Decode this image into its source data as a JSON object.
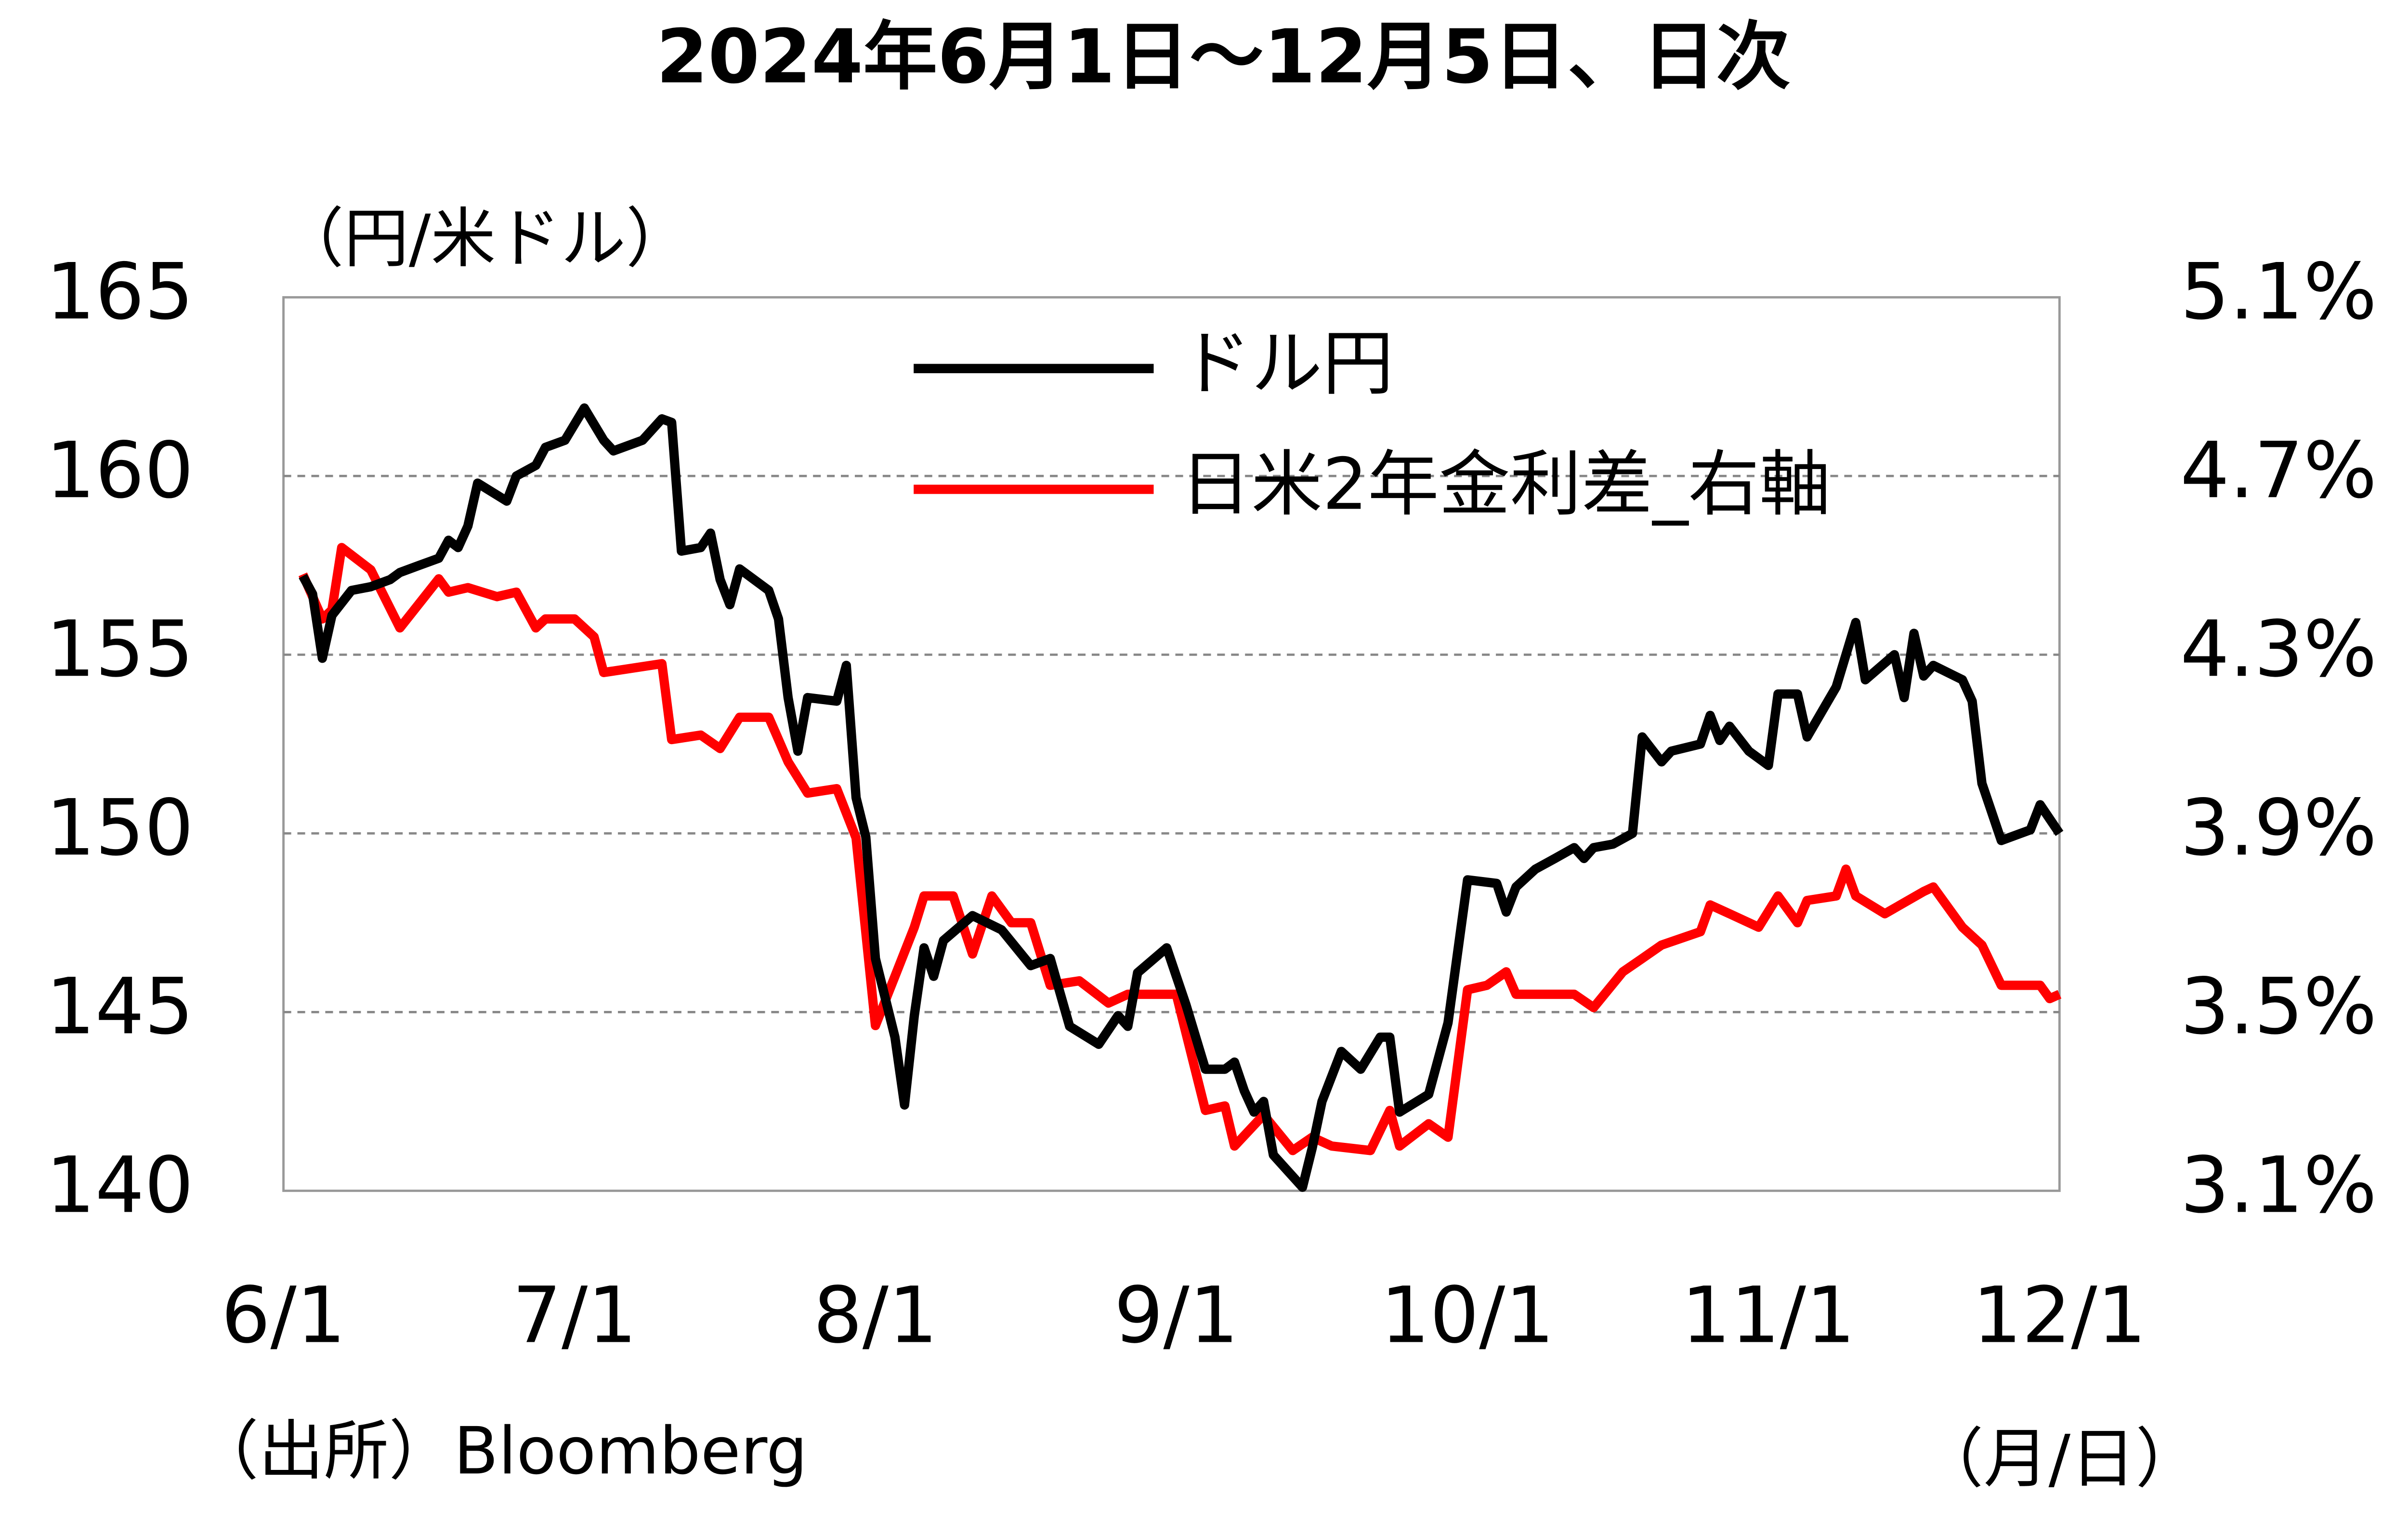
{
  "chart_data": {
    "type": "line",
    "title": "2024年6月1日～12月5日、日次",
    "y_label": "（円/米ドル）",
    "x_unit": "（月/日）",
    "source": "（出所）Bloomberg",
    "xlim": [
      "6/1",
      "12/1"
    ],
    "xticks": [
      "6/1",
      "7/1",
      "8/1",
      "9/1",
      "10/1",
      "11/1",
      "12/1"
    ],
    "ylim": [
      140,
      165
    ],
    "yticks": [
      140,
      145,
      150,
      155,
      160,
      165
    ],
    "y2lim": [
      3.1,
      5.1
    ],
    "y2ticks": [
      {
        "value": 3.1,
        "label": "3.1%"
      },
      {
        "value": 3.5,
        "label": "3.5%"
      },
      {
        "value": 3.9,
        "label": "3.9%"
      },
      {
        "value": 4.3,
        "label": "4.3%"
      },
      {
        "value": 4.7,
        "label": "4.7%"
      },
      {
        "value": 5.1,
        "label": "5.1%"
      }
    ],
    "grid": true,
    "series": [
      {
        "name": "ドル円",
        "color": "#000000",
        "x": [
          "6/3",
          "6/4",
          "6/5",
          "6/6",
          "6/8",
          "6/10",
          "6/12",
          "6/13",
          "6/15",
          "6/17",
          "6/18",
          "6/19",
          "6/20",
          "6/21",
          "6/24",
          "6/25",
          "6/27",
          "6/28",
          "6/30",
          "7/2",
          "7/4",
          "7/5",
          "7/8",
          "7/10",
          "7/11",
          "7/12",
          "7/14",
          "7/15",
          "7/16",
          "7/17",
          "7/18",
          "7/21",
          "7/22",
          "7/23",
          "7/24",
          "7/25",
          "7/28",
          "7/29",
          "7/30",
          "7/31",
          "8/1",
          "8/3",
          "8/4",
          "8/5",
          "8/6",
          "8/7",
          "8/8",
          "8/11",
          "8/14",
          "8/17",
          "8/19",
          "8/21",
          "8/24",
          "8/26",
          "8/27",
          "8/28",
          "8/31",
          "9/2",
          "9/4",
          "9/6",
          "9/7",
          "9/8",
          "9/9",
          "9/10",
          "9/11",
          "9/14",
          "9/15",
          "9/16",
          "9/18",
          "9/20",
          "9/22",
          "9/23",
          "9/24",
          "9/27",
          "9/29",
          "10/1",
          "10/4",
          "10/5",
          "10/6",
          "10/8",
          "10/10",
          "10/12",
          "10/13",
          "10/14",
          "10/16",
          "10/18",
          "10/19",
          "10/21",
          "10/22",
          "10/25",
          "10/26",
          "10/27",
          "10/28",
          "10/30",
          "11/1",
          "11/2",
          "11/4",
          "11/5",
          "11/8",
          "11/10",
          "11/11",
          "11/14",
          "11/15",
          "11/16",
          "11/17",
          "11/18",
          "11/21",
          "11/22",
          "11/23",
          "11/25",
          "11/28",
          "11/29",
          "12/1"
        ],
        "values": [
          157.2,
          156.7,
          154.9,
          156.1,
          156.8,
          156.9,
          157.1,
          157.3,
          157.5,
          157.7,
          158.2,
          158.0,
          158.6,
          159.8,
          159.3,
          160.0,
          160.3,
          160.8,
          161.0,
          161.9,
          161.0,
          160.7,
          161.0,
          161.6,
          161.5,
          157.9,
          158.0,
          158.4,
          157.1,
          156.4,
          157.4,
          156.8,
          156.0,
          153.8,
          152.3,
          153.8,
          153.7,
          154.7,
          151.0,
          149.9,
          146.5,
          144.3,
          142.4,
          144.9,
          146.8,
          146.0,
          147.0,
          147.7,
          147.3,
          146.3,
          146.5,
          144.6,
          144.1,
          144.9,
          144.6,
          146.1,
          146.8,
          145.2,
          143.4,
          143.4,
          143.6,
          142.8,
          142.2,
          142.5,
          141.0,
          140.1,
          141.2,
          142.5,
          143.9,
          143.4,
          144.3,
          144.3,
          142.2,
          142.7,
          144.7,
          148.7,
          148.6,
          147.8,
          148.5,
          149.0,
          149.3,
          149.6,
          149.3,
          149.6,
          149.7,
          150.0,
          152.7,
          152.0,
          152.3,
          152.5,
          153.3,
          152.6,
          153.0,
          152.3,
          151.9,
          153.9,
          153.9,
          152.7,
          154.1,
          155.9,
          154.3,
          155.0,
          153.8,
          155.6,
          154.4,
          154.7,
          154.3,
          153.7,
          151.4,
          149.8,
          150.1,
          150.8,
          150.0
        ]
      },
      {
        "name": "日米2年金利差_右軸",
        "color": "#ff0000",
        "axis": "y2",
        "x": [
          "6/3",
          "6/5",
          "6/6",
          "6/7",
          "6/10",
          "6/13",
          "6/17",
          "6/18",
          "6/20",
          "6/23",
          "6/25",
          "6/27",
          "6/28",
          "7/1",
          "7/3",
          "7/4",
          "7/10",
          "7/11",
          "7/14",
          "7/16",
          "7/18",
          "7/21",
          "7/22",
          "7/23",
          "7/25",
          "7/28",
          "7/30",
          "8/1",
          "8/3",
          "8/5",
          "8/6",
          "8/9",
          "8/11",
          "8/13",
          "8/15",
          "8/17",
          "8/19",
          "8/22",
          "8/25",
          "8/27",
          "8/30",
          "9/1",
          "9/4",
          "9/6",
          "9/7",
          "9/10",
          "9/13",
          "9/15",
          "9/17",
          "9/21",
          "9/23",
          "9/24",
          "9/27",
          "9/29",
          "10/1",
          "10/3",
          "10/5",
          "10/6",
          "10/12",
          "10/14",
          "10/17",
          "10/19",
          "10/21",
          "10/25",
          "10/26",
          "10/28",
          "10/31",
          "11/2",
          "11/4",
          "11/5",
          "11/8",
          "11/9",
          "11/10",
          "11/13",
          "11/17",
          "11/18",
          "11/21",
          "11/23",
          "11/25",
          "11/29",
          "11/30",
          "12/1"
        ],
        "values": [
          4.48,
          4.38,
          4.4,
          4.54,
          4.49,
          4.36,
          4.47,
          4.44,
          4.45,
          4.43,
          4.44,
          4.36,
          4.38,
          4.38,
          4.34,
          4.26,
          4.28,
          4.11,
          4.12,
          4.09,
          4.16,
          4.16,
          4.11,
          4.06,
          3.99,
          4.0,
          3.89,
          3.47,
          3.58,
          3.69,
          3.76,
          3.76,
          3.63,
          3.76,
          3.7,
          3.7,
          3.56,
          3.57,
          3.52,
          3.54,
          3.54,
          3.54,
          3.28,
          3.29,
          3.2,
          3.27,
          3.19,
          3.22,
          3.2,
          3.19,
          3.28,
          3.2,
          3.25,
          3.22,
          3.55,
          3.56,
          3.59,
          3.54,
          3.54,
          3.51,
          3.59,
          3.62,
          3.65,
          3.68,
          3.74,
          3.72,
          3.69,
          3.76,
          3.7,
          3.75,
          3.76,
          3.82,
          3.76,
          3.72,
          3.77,
          3.78,
          3.69,
          3.65,
          3.56,
          3.56,
          3.53,
          3.54
        ]
      }
    ]
  }
}
